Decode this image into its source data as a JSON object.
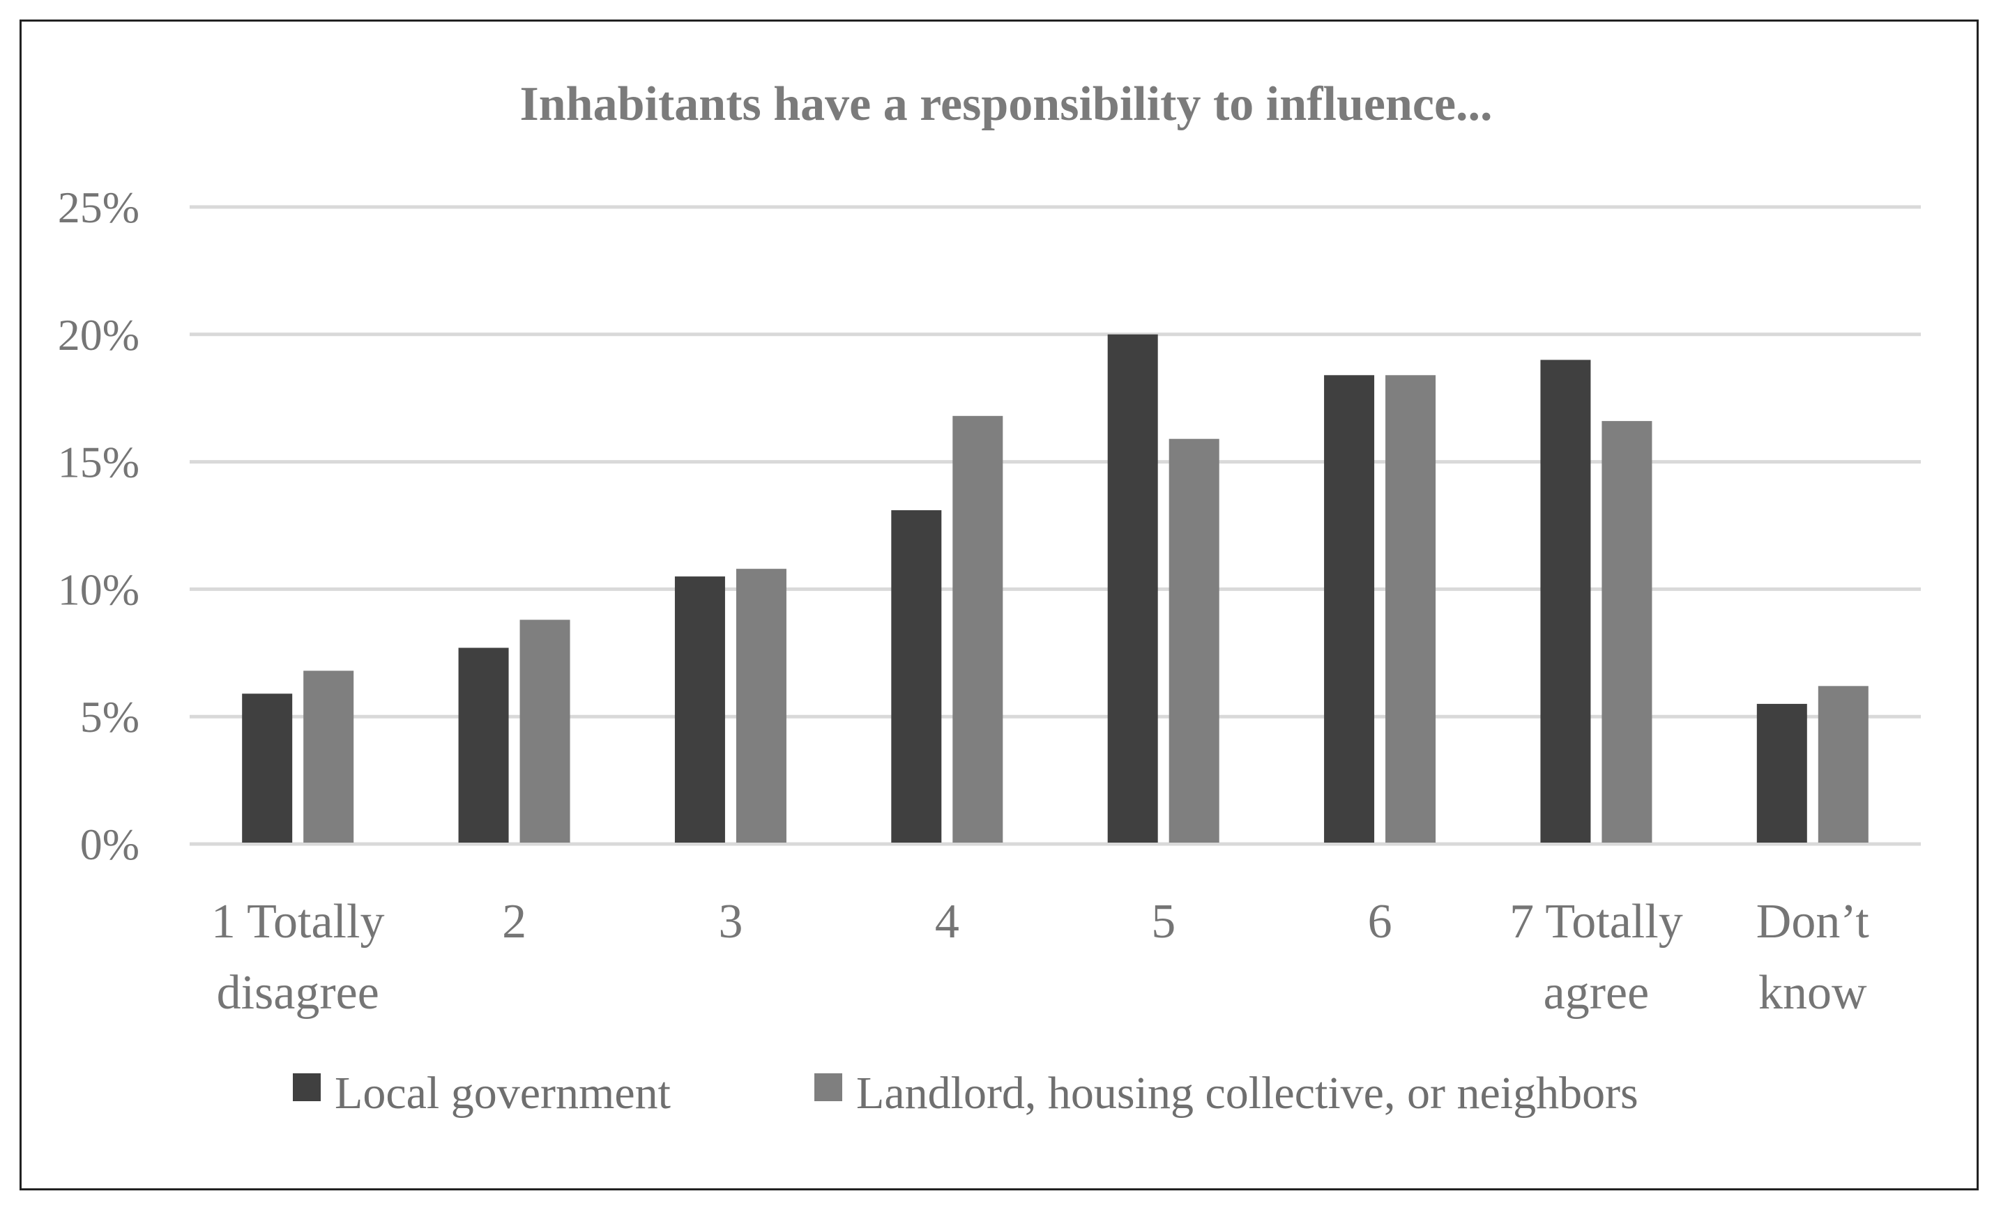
{
  "chart_data": {
    "type": "bar",
    "title": "Inhabitants have a responsibility to influence...",
    "xlabel": "",
    "ylabel": "",
    "ylim": [
      0,
      25
    ],
    "ytick_values": [
      0,
      5,
      10,
      15,
      20,
      25
    ],
    "ytick_labels": [
      "0%",
      "5%",
      "10%",
      "15%",
      "20%",
      "25%"
    ],
    "grid": true,
    "legend_position": "bottom",
    "categories": [
      [
        "1 Totally",
        "disagree"
      ],
      [
        "2"
      ],
      [
        "3"
      ],
      [
        "4"
      ],
      [
        "5"
      ],
      [
        "6"
      ],
      [
        "7 Totally",
        "agree"
      ],
      [
        "Don’t",
        "know"
      ]
    ],
    "series": [
      {
        "name": "Local government",
        "color": "#404040",
        "values": [
          5.9,
          7.7,
          10.5,
          13.1,
          20.0,
          18.4,
          19.0,
          5.5
        ]
      },
      {
        "name": "Landlord, housing collective, or neighbors",
        "color": "#7f7f7f",
        "values": [
          6.8,
          8.8,
          10.8,
          16.8,
          15.9,
          18.4,
          16.6,
          6.2
        ]
      }
    ],
    "colors": {
      "gridline": "#d9d9d9",
      "border": "#222222"
    }
  }
}
